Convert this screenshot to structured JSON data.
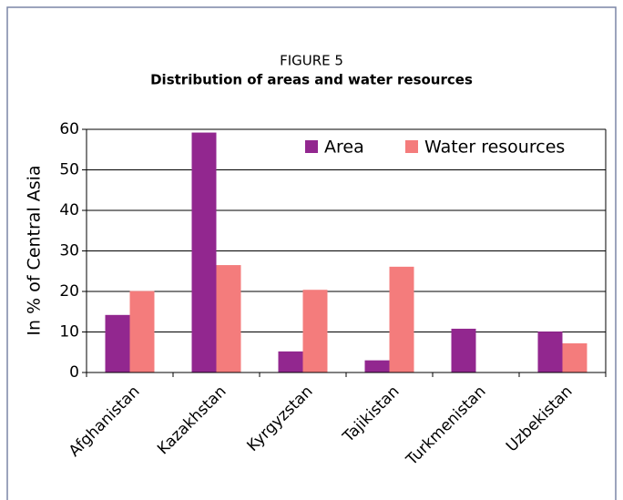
{
  "chart_data": {
    "type": "bar",
    "title": "FIGURE 5",
    "subtitle": "Distribution of areas and water resources",
    "y_label": "In % of Central Asia",
    "categories": [
      "Afghanistan",
      "Kazakhstan",
      "Kyrgyzstan",
      "Tajikistan",
      "Turkmenistan",
      "Uzbekistan"
    ],
    "series": [
      {
        "name": "Area",
        "color": "#92278f",
        "values": [
          14.2,
          59.2,
          5.2,
          3,
          10.8,
          10.1
        ]
      },
      {
        "name": "Water resources",
        "color": "#f47c7c",
        "values": [
          20.1,
          26.5,
          20.4,
          26.1,
          null,
          7.2
        ]
      }
    ],
    "ylim": [
      0,
      60
    ],
    "yticks": [
      0,
      10,
      20,
      30,
      40,
      50,
      60
    ],
    "grid": true,
    "legend": "top-right"
  }
}
